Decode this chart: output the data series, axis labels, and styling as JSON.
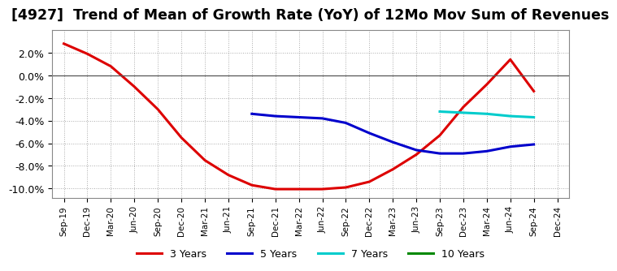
{
  "title": "[4927]  Trend of Mean of Growth Rate (YoY) of 12Mo Mov Sum of Revenues",
  "title_fontsize": 12.5,
  "background_color": "#ffffff",
  "plot_bg_color": "#ffffff",
  "grid_color": "#aaaaaa",
  "ylim": [
    -0.108,
    0.04
  ],
  "yticks": [
    0.02,
    0.0,
    -0.02,
    -0.04,
    -0.06,
    -0.08,
    -0.1
  ],
  "series": {
    "3 Years": {
      "color": "#dd0000",
      "linewidth": 2.2,
      "xi": [
        0,
        1,
        2,
        3,
        4,
        5,
        6,
        7,
        8,
        9,
        10,
        11,
        12,
        13,
        14,
        15,
        16,
        17,
        18,
        19,
        20
      ],
      "y": [
        0.028,
        0.019,
        0.008,
        -0.01,
        -0.03,
        -0.055,
        -0.075,
        -0.088,
        -0.097,
        -0.1005,
        -0.1005,
        -0.1005,
        -0.099,
        -0.094,
        -0.083,
        -0.07,
        -0.053,
        -0.028,
        -0.008,
        0.014,
        -0.014
      ]
    },
    "5 Years": {
      "color": "#0000cc",
      "linewidth": 2.2,
      "xi": [
        8,
        9,
        10,
        11,
        12,
        13,
        14,
        15,
        16,
        17,
        18,
        19,
        20
      ],
      "y": [
        -0.034,
        -0.036,
        -0.037,
        -0.038,
        -0.042,
        -0.051,
        -0.059,
        -0.066,
        -0.069,
        -0.069,
        -0.067,
        -0.063,
        -0.061
      ]
    },
    "7 Years": {
      "color": "#00cccc",
      "linewidth": 2.2,
      "xi": [
        16,
        17,
        18,
        19,
        20
      ],
      "y": [
        -0.032,
        -0.033,
        -0.034,
        -0.036,
        -0.037
      ]
    },
    "10 Years": {
      "color": "#008800",
      "linewidth": 2.2,
      "xi": [],
      "y": []
    }
  },
  "legend_order": [
    "3 Years",
    "5 Years",
    "7 Years",
    "10 Years"
  ],
  "xtick_labels": [
    "Sep-19",
    "Dec-19",
    "Mar-20",
    "Jun-20",
    "Sep-20",
    "Dec-20",
    "Mar-21",
    "Jun-21",
    "Sep-21",
    "Dec-21",
    "Mar-22",
    "Jun-22",
    "Sep-22",
    "Dec-22",
    "Mar-23",
    "Jun-23",
    "Sep-23",
    "Dec-23",
    "Mar-24",
    "Jun-24",
    "Sep-24",
    "Dec-24"
  ]
}
